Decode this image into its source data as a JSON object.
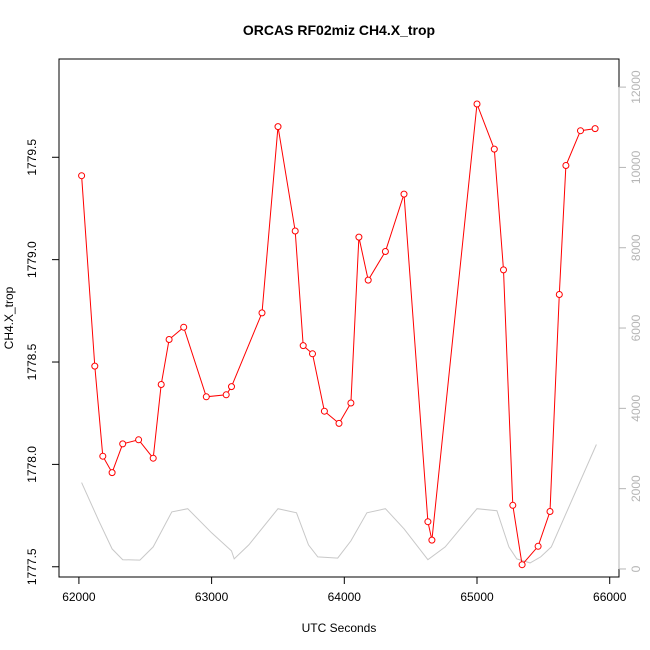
{
  "chart_data": {
    "type": "line",
    "title": "ORCAS RF02miz CH4.X_trop",
    "xlabel": "UTC Seconds",
    "ylabel": "CH4.X_trop",
    "xlim": [
      61850,
      66070
    ],
    "ylim": [
      1777.45,
      1779.98
    ],
    "x_ticks": [
      62000,
      63000,
      64000,
      65000,
      66000
    ],
    "x_tick_labels": [
      "62000",
      "63000",
      "64000",
      "65000",
      "66000"
    ],
    "y_ticks": [
      1777.5,
      1778.0,
      1778.5,
      1779.0,
      1779.5
    ],
    "y_tick_labels": [
      "1777.5",
      "1778.0",
      "1778.5",
      "1779.0",
      "1779.5"
    ],
    "y2lim": [
      -200,
      12700
    ],
    "y2_ticks": [
      0,
      2000,
      4000,
      6000,
      8000,
      10000,
      12000
    ],
    "y2_tick_labels": [
      "0",
      "2000",
      "4000",
      "6000",
      "8000",
      "10000",
      "12000"
    ],
    "grid": false,
    "legend": "none",
    "series": [
      {
        "color": "#ff0000",
        "marker": "open-circle",
        "x": [
          62020,
          62120,
          62180,
          62250,
          62330,
          62450,
          62560,
          62620,
          62680,
          62790,
          62960,
          63110,
          63150,
          63380,
          63500,
          63630,
          63690,
          63760,
          63850,
          63960,
          64050,
          64110,
          64180,
          64310,
          64450,
          64630,
          64660,
          65000,
          65130,
          65200,
          65270,
          65340,
          65460,
          65550,
          65620,
          65670,
          65780,
          65890
        ],
        "y": [
          1779.41,
          1778.48,
          1778.04,
          1777.96,
          1778.1,
          1778.12,
          1778.03,
          1778.39,
          1778.61,
          1778.67,
          1778.33,
          1778.34,
          1778.38,
          1778.74,
          1779.65,
          1779.14,
          1778.58,
          1778.54,
          1778.26,
          1778.2,
          1778.3,
          1779.11,
          1778.9,
          1779.04,
          1779.32,
          1777.72,
          1777.63,
          1779.76,
          1779.54,
          1778.95,
          1777.8,
          1777.51,
          1777.6,
          1777.77,
          1778.83,
          1779.46,
          1779.63,
          1779.64
        ]
      },
      {
        "color": "#c8c8c8",
        "axis": "right",
        "x": [
          62020,
          62150,
          62250,
          62330,
          62460,
          62560,
          62700,
          62820,
          63000,
          63150,
          63170,
          63280,
          63500,
          63640,
          63730,
          63800,
          63950,
          64050,
          64170,
          64310,
          64450,
          64630,
          64760,
          65000,
          65150,
          65240,
          65300,
          65400,
          65480,
          65560,
          65900
        ],
        "y": [
          2150,
          1200,
          500,
          230,
          220,
          550,
          1420,
          1500,
          900,
          450,
          250,
          600,
          1500,
          1400,
          600,
          300,
          270,
          700,
          1400,
          1500,
          1000,
          230,
          550,
          1500,
          1450,
          550,
          250,
          150,
          300,
          550,
          3100
        ]
      }
    ]
  }
}
